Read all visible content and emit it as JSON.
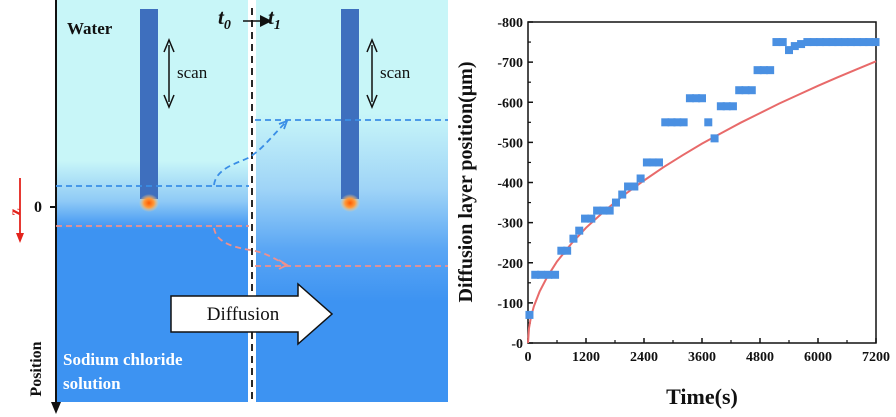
{
  "diagram": {
    "water_label": "Water",
    "time_label_t0": "t",
    "time_label_t0_sub": "0",
    "time_label_t1": "t",
    "time_label_t1_sub": "1",
    "scan_label_left": "scan",
    "scan_label_right": "scan",
    "zero_label": "0",
    "z_label": "z",
    "diffusion_label": "Diffusion",
    "solution_label_line1": "Sodium chloride",
    "solution_label_line2": "solution",
    "position_label": "Position",
    "colors": {
      "water": "#c8f6f8",
      "solution": "#3d93f2",
      "probe": "#3e6fbe",
      "tip": "#ff7a1a",
      "blue_dash": "#3a8ee6",
      "pink_dash": "#f0908c",
      "z_arrow": "#e3231c"
    }
  },
  "chart_data": {
    "type": "scatter",
    "xlabel": "Time(s)",
    "ylabel": "Diffusion layer position(μm)",
    "xlim": [
      0,
      7200
    ],
    "ylim": [
      0,
      -800
    ],
    "y_axis_inverted": true,
    "xticks": [
      0,
      1200,
      2400,
      3600,
      4800,
      6000,
      7200
    ],
    "yticks": [
      0,
      -100,
      -200,
      -300,
      -400,
      -500,
      -600,
      -700,
      -800
    ],
    "xtick_labels": [
      "0",
      "1200",
      "2400",
      "3600",
      "4800",
      "6000",
      "7200"
    ],
    "ytick_labels": [
      "-0",
      "-100",
      "-200",
      "-300",
      "-400",
      "-500",
      "-600",
      "-700",
      "-800"
    ],
    "series": [
      {
        "kind": "points",
        "marker": "square",
        "color": "#4a90e2",
        "x": [
          30,
          150,
          270,
          420,
          560,
          690,
          810,
          940,
          1060,
          1180,
          1310,
          1430,
          1560,
          1690,
          1820,
          1950,
          2070,
          2200,
          2330,
          2460,
          2580,
          2710,
          2840,
          2970,
          3090,
          3220,
          3350,
          3480,
          3600,
          3730,
          3860,
          3990,
          4110,
          4240,
          4370,
          4500,
          4630,
          4750,
          4880,
          5010,
          5140,
          5270,
          5400,
          5520,
          5650,
          5780,
          5910,
          6040,
          6170,
          6300,
          6420,
          6550,
          6680,
          6810,
          6940,
          7060,
          7190
        ],
        "y": [
          -70,
          -170,
          -170,
          -170,
          -170,
          -230,
          -230,
          -260,
          -280,
          -310,
          -310,
          -330,
          -330,
          -330,
          -350,
          -370,
          -390,
          -390,
          -410,
          -450,
          -450,
          -450,
          -550,
          -550,
          -550,
          -550,
          -610,
          -610,
          -610,
          -550,
          -510,
          -590,
          -590,
          -590,
          -630,
          -630,
          -630,
          -680,
          -680,
          -680,
          -750,
          -750,
          -730,
          -740,
          -745,
          -750,
          -750,
          -750,
          -750,
          -750,
          -750,
          -750,
          -750,
          -750,
          -750,
          -750,
          -750
        ]
      },
      {
        "kind": "fit",
        "color": "#e86a6a",
        "x": [
          0,
          20,
          60,
          120,
          240,
          400,
          600,
          900,
          1200,
          1600,
          2000,
          2400,
          2800,
          3200,
          3600,
          4000,
          4400,
          4800,
          5200,
          5600,
          6000,
          6400,
          6800,
          7200
        ],
        "y": [
          0,
          -37,
          -64,
          -91,
          -128,
          -165,
          -203,
          -248,
          -287,
          -331,
          -370,
          -405,
          -438,
          -468,
          -497,
          -523,
          -549,
          -573,
          -597,
          -619,
          -641,
          -662,
          -682,
          -702
        ]
      }
    ]
  }
}
